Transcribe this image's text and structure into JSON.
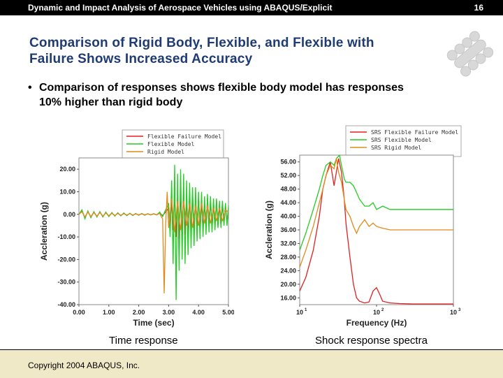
{
  "header": {
    "title": "Dynamic and Impact Analysis of Aerospace Vehicles using ABAQUS/Explicit",
    "page_number": "16"
  },
  "slide": {
    "title_line1": "Comparison of Rigid Body, Flexible, and Flexible with",
    "title_line2": "Failure Shows Increased Accuracy",
    "bullet_line1": "Comparison of responses shows flexible body model has responses",
    "bullet_line2": "10% higher than rigid body"
  },
  "captions": {
    "left": "Time response",
    "right": "Shock response spectra"
  },
  "footer": {
    "copyright": "Copyright 2004 ABAQUS, Inc."
  },
  "chart_data": [
    {
      "type": "line",
      "xlabel": "Time (sec)",
      "ylabel": "Accleration (g)",
      "xlim": [
        0,
        5
      ],
      "ylim": [
        -40,
        25
      ],
      "x_ticks": [
        0,
        1,
        2,
        3,
        4,
        5
      ],
      "x_tick_labels": [
        "0.00",
        "1.00",
        "2.00",
        "3.00",
        "4.00",
        "5.00"
      ],
      "y_ticks": [
        20,
        10,
        0,
        -10,
        -20,
        -30,
        -40
      ],
      "y_tick_labels": [
        "20.00",
        "10.00",
        "0.00",
        "-10.00",
        "-20.00",
        "-30.00",
        "-40.00"
      ],
      "legend_position": "top-right",
      "series": [
        {
          "name": "Flexible Failure Model",
          "color": "#e02020",
          "x": [
            0,
            0.1,
            0.2,
            0.3,
            0.4,
            0.5,
            0.6,
            0.7,
            0.8,
            0.9,
            1.0,
            1.1,
            1.2,
            1.3,
            1.4,
            1.5,
            1.6,
            1.7,
            1.8,
            1.9,
            2.0,
            2.1,
            2.2,
            2.3,
            2.4,
            2.5,
            2.6,
            2.7,
            2.8,
            2.9,
            3.0,
            3.05,
            3.1,
            3.15,
            3.2,
            3.25,
            3.3,
            3.35,
            3.4,
            3.45,
            3.5,
            3.55,
            3.6,
            3.65,
            3.7,
            3.75,
            3.8,
            3.85,
            3.9,
            3.95,
            4.0,
            4.05,
            4.1,
            4.15,
            4.2,
            4.25,
            4.3,
            4.35,
            4.4,
            4.45,
            4.5,
            4.55,
            4.6,
            4.65,
            4.7,
            4.75,
            4.8,
            4.85,
            4.9,
            4.95,
            5.0
          ],
          "y": [
            0,
            1.5,
            -1.5,
            1.2,
            -1.2,
            1.0,
            -1.0,
            1.0,
            -1.0,
            0.8,
            -0.8,
            0.6,
            -0.6,
            0.5,
            -0.5,
            0.4,
            -0.4,
            0.4,
            -0.4,
            0.3,
            -0.3,
            0.3,
            -0.3,
            0.2,
            -0.2,
            0.2,
            -0.2,
            0.5,
            -0.5,
            1.0,
            3,
            -5,
            6,
            -7,
            9,
            -10,
            8,
            -11,
            9,
            -8,
            10,
            -9,
            7,
            -10,
            8,
            -7,
            9,
            -8,
            7,
            -6,
            8,
            -7,
            6,
            -7,
            5,
            -6,
            7,
            -5,
            6,
            -6,
            5,
            -5,
            6,
            -5,
            4,
            -5,
            5,
            -4,
            4,
            -4,
            3
          ]
        },
        {
          "name": "Flexible Model",
          "color": "#22cc22",
          "x": [
            0,
            0.1,
            0.2,
            0.3,
            0.4,
            0.5,
            0.6,
            0.7,
            0.8,
            0.9,
            1.0,
            1.1,
            1.2,
            1.3,
            1.4,
            1.5,
            1.6,
            1.7,
            1.8,
            1.9,
            2.0,
            2.1,
            2.2,
            2.3,
            2.4,
            2.5,
            2.6,
            2.7,
            2.8,
            2.9,
            3.0,
            3.05,
            3.1,
            3.15,
            3.2,
            3.25,
            3.3,
            3.35,
            3.4,
            3.45,
            3.5,
            3.55,
            3.6,
            3.65,
            3.7,
            3.75,
            3.8,
            3.85,
            3.9,
            3.95,
            4.0,
            4.05,
            4.1,
            4.15,
            4.2,
            4.25,
            4.3,
            4.35,
            4.4,
            4.45,
            4.5,
            4.55,
            4.6,
            4.65,
            4.7,
            4.75,
            4.8,
            4.85,
            4.9,
            4.95,
            5.0
          ],
          "y": [
            0,
            2.0,
            -2.0,
            1.5,
            -1.5,
            1.2,
            -1.2,
            1.2,
            -1.2,
            1.0,
            -1.0,
            0.8,
            -0.8,
            0.7,
            -0.7,
            0.6,
            -0.6,
            0.5,
            -0.5,
            0.4,
            -0.4,
            0.4,
            -0.4,
            0.3,
            -0.3,
            0.3,
            -0.3,
            1.0,
            -1.0,
            2.0,
            5,
            -10,
            15,
            -22,
            22,
            -38,
            18,
            -25,
            20,
            -20,
            18,
            -22,
            15,
            -18,
            14,
            -15,
            12,
            -14,
            12,
            -12,
            10,
            -11,
            10,
            -10,
            8,
            -9,
            9,
            -8,
            8,
            -8,
            7,
            -7,
            7,
            -6,
            6,
            -6,
            6,
            -5,
            5,
            -5,
            4
          ]
        },
        {
          "name": "Rigid Model",
          "color": "#e08a1a",
          "x": [
            0,
            0.1,
            0.2,
            0.3,
            0.4,
            0.5,
            0.6,
            0.7,
            0.8,
            0.9,
            1.0,
            1.1,
            1.2,
            1.3,
            1.4,
            1.5,
            1.6,
            1.7,
            1.8,
            1.9,
            2.0,
            2.1,
            2.2,
            2.3,
            2.4,
            2.5,
            2.6,
            2.7,
            2.75,
            2.8,
            2.85,
            2.9,
            2.95,
            3.0,
            3.1,
            3.2,
            3.3,
            3.4,
            3.5,
            3.6,
            3.7,
            3.8,
            3.9,
            4.0,
            4.1,
            4.2,
            4.3,
            4.4,
            4.5,
            4.6,
            4.7,
            4.8,
            4.9,
            5.0
          ],
          "y": [
            0,
            1.2,
            -1.2,
            1.0,
            -1.0,
            0.8,
            -0.8,
            0.8,
            -0.8,
            0.6,
            -0.6,
            0.5,
            -0.5,
            0.4,
            -0.4,
            0.3,
            -0.3,
            0.3,
            -0.3,
            0.2,
            -0.2,
            0.2,
            -0.2,
            0.2,
            -0.2,
            0.2,
            -0.2,
            0.5,
            -1.0,
            -2.0,
            -35,
            -5,
            10,
            -6,
            7,
            -8,
            6,
            -7,
            6,
            -5,
            5,
            -6,
            4,
            -5,
            5,
            -4,
            4,
            -4,
            3,
            -3,
            3,
            -3,
            2,
            1
          ]
        }
      ]
    },
    {
      "type": "line",
      "xlabel": "Frequency (Hz)",
      "ylabel": "Accleration (g)",
      "x_scale": "log",
      "xlim": [
        10,
        1000
      ],
      "ylim": [
        14,
        58
      ],
      "x_ticks": [
        10,
        100,
        1000
      ],
      "x_tick_labels": [
        "10",
        "10",
        "10"
      ],
      "x_tick_exponents": [
        "1",
        "2",
        "3"
      ],
      "y_ticks": [
        56,
        52,
        48,
        44,
        40,
        36,
        32,
        28,
        24,
        20,
        16
      ],
      "y_tick_labels": [
        "56.00",
        "52.00",
        "48.00",
        "44.00",
        "40.00",
        "36.00",
        "32.00",
        "28.00",
        "24.00",
        "20.00",
        "16.00"
      ],
      "legend_position": "top-right",
      "series": [
        {
          "name": "SRS Flexible Failure Model",
          "color": "#e02020",
          "x": [
            10,
            12,
            15,
            18,
            20,
            22,
            25,
            28,
            30,
            32,
            35,
            38,
            40,
            45,
            50,
            55,
            60,
            70,
            80,
            90,
            100,
            110,
            120,
            150,
            200,
            300,
            500,
            1000
          ],
          "y": [
            18,
            22,
            30,
            40,
            48,
            52,
            56,
            49,
            53,
            57,
            53,
            45,
            38,
            28,
            20,
            16,
            15,
            14.5,
            14.8,
            18,
            19,
            17,
            15,
            14.5,
            14.3,
            14.2,
            14.2,
            14.2
          ]
        },
        {
          "name": "SRS Flexible Model",
          "color": "#22cc22",
          "x": [
            10,
            12,
            15,
            18,
            20,
            22,
            25,
            28,
            30,
            33,
            35,
            38,
            40,
            45,
            50,
            55,
            60,
            70,
            80,
            90,
            100,
            120,
            150,
            200,
            300,
            500,
            1000
          ],
          "y": [
            30,
            35,
            42,
            48,
            52,
            55,
            56,
            55,
            57,
            58,
            55,
            51,
            50,
            50,
            49,
            47,
            45,
            43,
            43,
            44,
            42,
            43,
            42,
            42,
            42,
            42,
            42
          ]
        },
        {
          "name": "SRS Rigid Model",
          "color": "#e08a1a",
          "x": [
            10,
            12,
            15,
            18,
            20,
            22,
            25,
            28,
            30,
            32,
            35,
            38,
            40,
            45,
            50,
            55,
            60,
            70,
            80,
            90,
            100,
            120,
            150,
            200,
            300,
            500,
            1000
          ],
          "y": [
            25,
            30,
            37,
            44,
            48,
            52,
            55,
            54,
            57,
            53,
            50,
            45,
            42,
            40,
            37,
            35,
            37,
            39,
            37,
            38,
            37,
            36.5,
            36,
            36,
            36,
            36,
            36
          ]
        }
      ]
    }
  ]
}
